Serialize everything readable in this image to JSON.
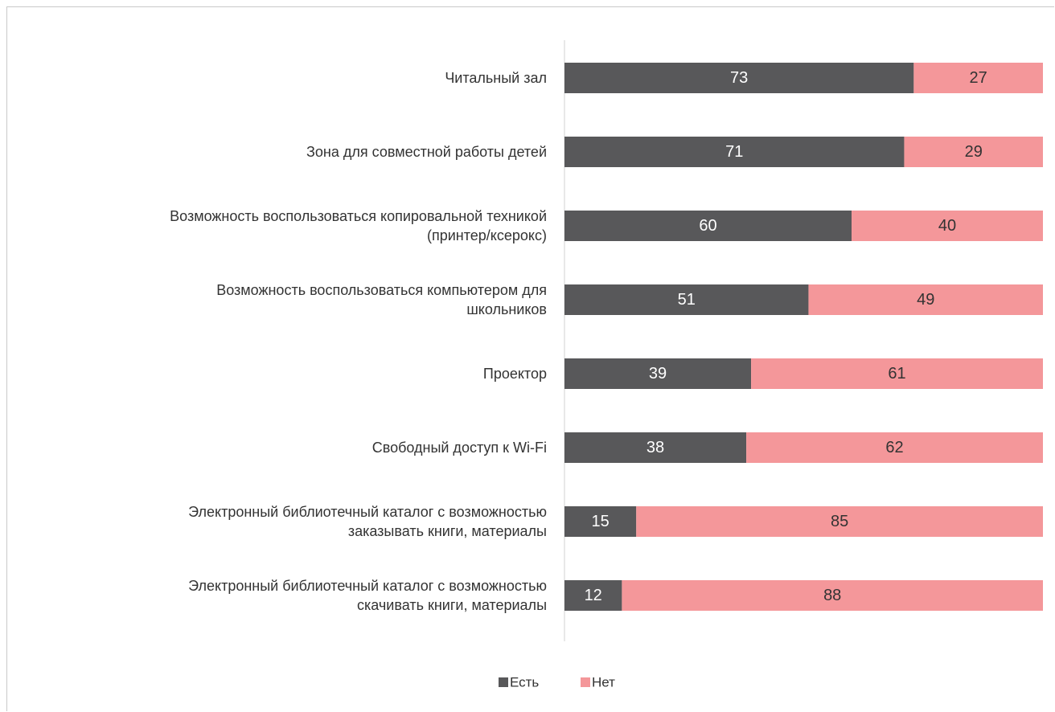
{
  "chart_data": {
    "type": "bar",
    "orientation": "horizontal",
    "stacked": true,
    "categories": [
      [
        "Читальный зал"
      ],
      [
        "Зона для совместной работы детей"
      ],
      [
        "Возможность воспользоваться копировальной техникой",
        "(принтер/ксерокс)"
      ],
      [
        "Возможность воспользоваться компьютером для",
        "школьников"
      ],
      [
        "Проектор"
      ],
      [
        "Свободный доступ к Wi-Fi"
      ],
      [
        "Электронный библиотечный каталог с возможностью",
        "заказывать книги, материалы"
      ],
      [
        "Электронный библиотечный каталог с возможностью",
        "скачивать книги, материалы"
      ]
    ],
    "series": [
      {
        "name": "Есть",
        "color": "#58585a",
        "label_color": "#ffffff",
        "values": [
          73,
          71,
          60,
          51,
          39,
          38,
          15,
          12
        ]
      },
      {
        "name": "Нет",
        "color": "#f4979a",
        "label_color": "#333333",
        "values": [
          27,
          29,
          40,
          49,
          61,
          62,
          85,
          88
        ]
      }
    ],
    "xlim": [
      0,
      100
    ],
    "grid": false,
    "legend_position": "bottom"
  }
}
